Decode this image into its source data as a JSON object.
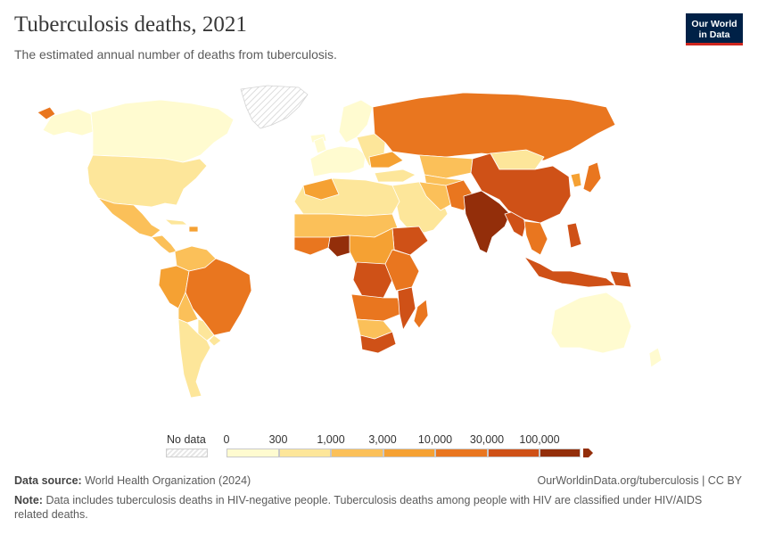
{
  "header": {
    "title": "Tuberculosis deaths, 2021",
    "subtitle": "The estimated annual number of deaths from tuberculosis."
  },
  "logo": {
    "line1": "Our World",
    "line2": "in Data",
    "bg": "#002147",
    "accent": "#ce261e"
  },
  "legend": {
    "no_data_label": "No data",
    "ticks": [
      "0",
      "300",
      "1,000",
      "3,000",
      "10,000",
      "30,000",
      "100,000"
    ],
    "bin_colors": [
      "#fffbd0",
      "#fde69a",
      "#fbc059",
      "#f5a133",
      "#e9761f",
      "#cf5117",
      "#932e0a"
    ],
    "no_data_color": "#e6e6e6"
  },
  "footer": {
    "source_label": "Data source:",
    "source_text": "World Health Organization (2024)",
    "url_text": "OurWorldinData.org/tuberculosis | CC BY",
    "note_label": "Note:",
    "note_text": "Data includes tuberculosis deaths in HIV-negative people. Tuberculosis deaths among people with HIV are classified under HIV/AIDS related deaths."
  }
}
